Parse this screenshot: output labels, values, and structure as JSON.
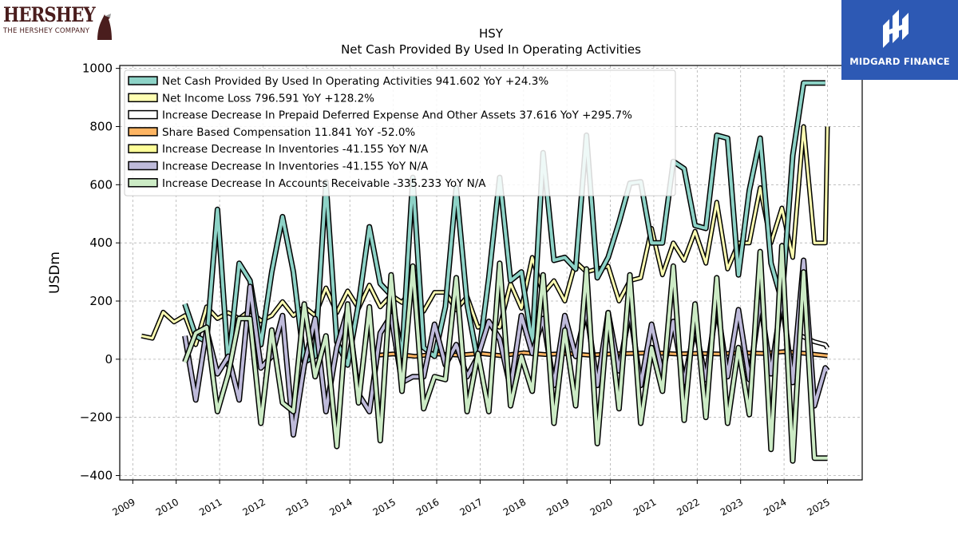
{
  "logos": {
    "left_word": "HERSHEY",
    "left_sub": "THE HERSHEY COMPANY",
    "right_name": "MIDGARD FINANCE"
  },
  "chart_data": {
    "type": "line",
    "title": "HSY",
    "subtitle": "Net Cash Provided By Used In Operating Activities",
    "ylabel": "USDm",
    "xlabel": "",
    "xlim": [
      2008.7,
      2025.8
    ],
    "ylim": [
      -415,
      1010
    ],
    "xticks": [
      "2009",
      "2010",
      "2011",
      "2012",
      "2013",
      "2014",
      "2015",
      "2016",
      "2017",
      "2018",
      "2019",
      "2020",
      "2021",
      "2022",
      "2023",
      "2024",
      "2025"
    ],
    "yticks": [
      -400,
      -200,
      0,
      200,
      400,
      600,
      800,
      1000
    ],
    "grid": true,
    "legend_position": "top-left",
    "series": [
      {
        "name": "Net Cash Provided By Used In Operating Activities  941.602 YoY +24.3%",
        "color": "#8dd3c7",
        "edge": "#000000",
        "width": 4,
        "order": 3,
        "x": [
          2010.2,
          2010.45,
          2010.7,
          2010.95,
          2011.2,
          2011.45,
          2011.7,
          2011.95,
          2012.2,
          2012.45,
          2012.7,
          2012.95,
          2013.2,
          2013.45,
          2013.7,
          2013.95,
          2014.2,
          2014.45,
          2014.7,
          2014.95,
          2015.2,
          2015.45,
          2015.7,
          2015.95,
          2016.2,
          2016.45,
          2016.7,
          2016.95,
          2017.2,
          2017.45,
          2017.7,
          2017.95,
          2018.2,
          2018.45,
          2018.7,
          2018.95,
          2019.2,
          2019.45,
          2019.7,
          2019.95,
          2020.2,
          2020.45,
          2020.7,
          2020.95,
          2021.2,
          2021.45,
          2021.7,
          2021.95,
          2022.2,
          2022.45,
          2022.7,
          2022.95,
          2023.2,
          2023.45,
          2023.7,
          2023.95,
          2024.2,
          2024.45,
          2024.7,
          2024.95
        ],
        "y": [
          190,
          80,
          60,
          515,
          -20,
          330,
          270,
          50,
          300,
          490,
          300,
          -10,
          10,
          610,
          60,
          -20,
          190,
          455,
          260,
          220,
          10,
          625,
          40,
          10,
          180,
          590,
          190,
          -10,
          280,
          625,
          270,
          300,
          50,
          710,
          340,
          350,
          310,
          770,
          280,
          350,
          470,
          605,
          610,
          400,
          400,
          680,
          655,
          460,
          450,
          770,
          760,
          290,
          580,
          760,
          330,
          200,
          700,
          950,
          950,
          950
        ]
      },
      {
        "name": "Net Income Loss  796.591 YoY +128.2%",
        "color": "#ffffb3",
        "edge": "#000000",
        "width": 3,
        "order": 2,
        "x": [
          2009.2,
          2009.45,
          2009.7,
          2009.95,
          2010.2,
          2010.45,
          2010.7,
          2010.95,
          2011.2,
          2011.45,
          2011.7,
          2011.95,
          2012.2,
          2012.45,
          2012.7,
          2012.95,
          2013.2,
          2013.45,
          2013.7,
          2013.95,
          2014.2,
          2014.45,
          2014.7,
          2014.95,
          2015.2,
          2015.45,
          2015.7,
          2015.95,
          2016.2,
          2016.45,
          2016.7,
          2016.95,
          2017.2,
          2017.45,
          2017.7,
          2017.95,
          2018.2,
          2018.45,
          2018.7,
          2018.95,
          2019.2,
          2019.45,
          2019.7,
          2019.95,
          2020.2,
          2020.45,
          2020.7,
          2020.95,
          2021.2,
          2021.45,
          2021.7,
          2021.95,
          2022.2,
          2022.45,
          2022.7,
          2022.95,
          2023.2,
          2023.45,
          2023.7,
          2023.95,
          2024.2,
          2024.45,
          2024.7,
          2024.95,
          2025.0
        ],
        "y": [
          80,
          72,
          162,
          128,
          150,
          50,
          180,
          140,
          160,
          140,
          168,
          132,
          150,
          198,
          150,
          180,
          150,
          245,
          160,
          235,
          175,
          255,
          180,
          220,
          195,
          245,
          165,
          230,
          230,
          170,
          215,
          110,
          120,
          110,
          260,
          175,
          350,
          225,
          270,
          200,
          335,
          300,
          310,
          320,
          200,
          270,
          280,
          450,
          290,
          400,
          340,
          440,
          330,
          540,
          310,
          400,
          400,
          590,
          400,
          520,
          350,
          800,
          400,
          400,
          800
        ]
      },
      {
        "name": "Increase Decrease In Prepaid Deferred Expense And Other Assets  37.616 YoY +295.7%",
        "color": "#ffffff",
        "edge": "#000000",
        "width": 3,
        "order": 1,
        "x": [
          2024.4,
          2024.7,
          2024.95,
          2025.0
        ],
        "y": [
          80,
          60,
          50,
          38
        ]
      },
      {
        "name": "Share Based Compensation  11.841 YoY -52.0%",
        "color": "#fdb462",
        "edge": "#000000",
        "width": 3,
        "order": 2,
        "x": [
          2014.5,
          2015.0,
          2015.5,
          2016.0,
          2016.5,
          2017.0,
          2017.5,
          2018.0,
          2018.5,
          2019.0,
          2019.5,
          2020.0,
          2020.5,
          2021.0,
          2021.5,
          2022.0,
          2022.5,
          2023.0,
          2023.5,
          2024.0,
          2024.5,
          2025.0
        ],
        "y": [
          12,
          18,
          10,
          18,
          14,
          20,
          12,
          22,
          16,
          20,
          14,
          18,
          20,
          22,
          18,
          20,
          18,
          22,
          20,
          26,
          20,
          12
        ]
      },
      {
        "name": "Increase Decrease In Inventories  -41.155 YoY N/A",
        "color": "#ffff99",
        "edge": "#000000",
        "width": 3,
        "order": 0,
        "x": [],
        "y": []
      },
      {
        "name": "Increase Decrease In Inventories  -41.155 YoY N/A",
        "color": "#bebada",
        "edge": "#000000",
        "width": 4,
        "order": 4,
        "x": [
          2010.2,
          2010.45,
          2010.7,
          2010.95,
          2011.2,
          2011.45,
          2011.7,
          2011.95,
          2012.2,
          2012.45,
          2012.7,
          2012.95,
          2013.2,
          2013.45,
          2013.7,
          2013.95,
          2014.2,
          2014.45,
          2014.7,
          2014.95,
          2015.2,
          2015.45,
          2015.7,
          2015.95,
          2016.2,
          2016.45,
          2016.7,
          2016.95,
          2017.2,
          2017.45,
          2017.7,
          2017.95,
          2018.2,
          2018.45,
          2018.7,
          2018.95,
          2019.2,
          2019.45,
          2019.7,
          2019.95,
          2020.2,
          2020.45,
          2020.7,
          2020.95,
          2021.2,
          2021.45,
          2021.7,
          2021.95,
          2022.2,
          2022.45,
          2022.7,
          2022.95,
          2023.2,
          2023.45,
          2023.7,
          2023.95,
          2024.2,
          2024.45,
          2024.7,
          2024.95,
          2025.0
        ],
        "y": [
          80,
          -140,
          100,
          -50,
          10,
          -140,
          250,
          -30,
          10,
          150,
          -260,
          -20,
          140,
          -180,
          40,
          170,
          -120,
          -180,
          90,
          150,
          -80,
          -60,
          -60,
          120,
          -20,
          50,
          -60,
          10,
          130,
          70,
          -100,
          150,
          20,
          140,
          -90,
          150,
          10,
          170,
          -90,
          160,
          -40,
          170,
          -90,
          120,
          -50,
          130,
          -80,
          110,
          -70,
          190,
          -60,
          170,
          -70,
          200,
          -50,
          210,
          -80,
          340,
          -160,
          -30,
          -40
        ]
      },
      {
        "name": "Increase Decrease In Accounts Receivable  -335.233 YoY N/A",
        "color": "#ccebc5",
        "edge": "#000000",
        "width": 4,
        "order": 5,
        "x": [
          2010.2,
          2010.45,
          2010.7,
          2010.95,
          2011.2,
          2011.45,
          2011.7,
          2011.95,
          2012.2,
          2012.45,
          2012.7,
          2012.95,
          2013.2,
          2013.45,
          2013.7,
          2013.95,
          2014.2,
          2014.45,
          2014.7,
          2014.95,
          2015.2,
          2015.45,
          2015.7,
          2015.95,
          2016.2,
          2016.45,
          2016.7,
          2016.95,
          2017.2,
          2017.45,
          2017.7,
          2017.95,
          2018.2,
          2018.45,
          2018.7,
          2018.95,
          2019.2,
          2019.45,
          2019.7,
          2019.95,
          2020.2,
          2020.45,
          2020.7,
          2020.95,
          2021.2,
          2021.45,
          2021.7,
          2021.95,
          2022.2,
          2022.45,
          2022.7,
          2022.95,
          2023.2,
          2023.45,
          2023.7,
          2023.95,
          2024.2,
          2024.45,
          2024.7,
          2024.95,
          2025.0
        ],
        "y": [
          -10,
          90,
          110,
          -180,
          -50,
          140,
          140,
          -220,
          100,
          -150,
          -180,
          190,
          -60,
          80,
          -300,
          190,
          -150,
          180,
          -280,
          290,
          -110,
          320,
          -170,
          -60,
          -70,
          280,
          -180,
          20,
          -180,
          330,
          -160,
          10,
          -110,
          290,
          -220,
          100,
          -160,
          310,
          -290,
          160,
          -170,
          290,
          -220,
          40,
          -110,
          320,
          -210,
          190,
          -200,
          280,
          -220,
          40,
          -190,
          370,
          -310,
          390,
          -350,
          300,
          -340,
          -340,
          -340
        ]
      }
    ]
  }
}
